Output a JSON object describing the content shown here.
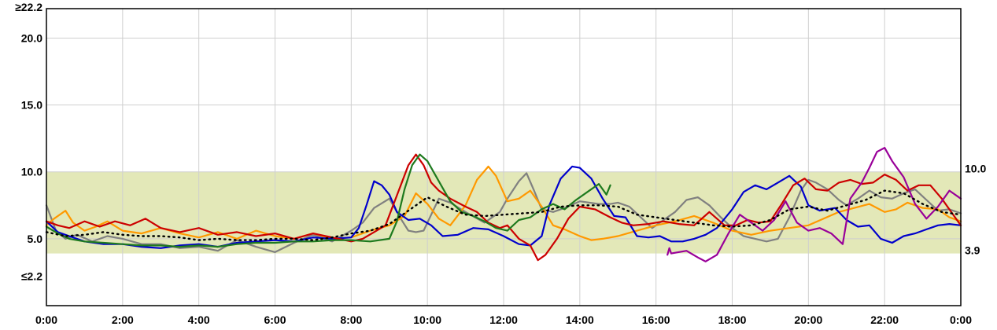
{
  "chart_data": {
    "type": "line",
    "x_unit": "hour",
    "xlim": [
      0,
      24
    ],
    "ylim": [
      0,
      22.2
    ],
    "x_ticks": [
      {
        "value": 0,
        "label": "0:00"
      },
      {
        "value": 2,
        "label": "2:00"
      },
      {
        "value": 4,
        "label": "4:00"
      },
      {
        "value": 6,
        "label": "6:00"
      },
      {
        "value": 8,
        "label": "8:00"
      },
      {
        "value": 10,
        "label": "10:00"
      },
      {
        "value": 12,
        "label": "12:00"
      },
      {
        "value": 14,
        "label": "14:00"
      },
      {
        "value": 16,
        "label": "16:00"
      },
      {
        "value": 18,
        "label": "18:00"
      },
      {
        "value": 20,
        "label": "20:00"
      },
      {
        "value": 22,
        "label": "22:00"
      },
      {
        "value": 24,
        "label": "0:00"
      }
    ],
    "y_ticks_left": [
      {
        "value": 22.2,
        "label": "≥22.2"
      },
      {
        "value": 20.0,
        "label": "20.0"
      },
      {
        "value": 15.0,
        "label": "15.0"
      },
      {
        "value": 10.0,
        "label": "10.0"
      },
      {
        "value": 5.0,
        "label": "5.0"
      },
      {
        "value": 2.2,
        "label": "≤2.2"
      }
    ],
    "y_labels_right": [
      {
        "value": 10.0,
        "label": "10.0"
      },
      {
        "value": 3.9,
        "label": "3.9"
      }
    ],
    "target_range": {
      "low": 3.9,
      "high": 10.0,
      "color": "#e3e8b8"
    },
    "grid": true,
    "series": [
      {
        "color": "#808080",
        "x": [
          0,
          0.25,
          0.5,
          0.8,
          1.2,
          1.6,
          2.0,
          2.5,
          3.0,
          3.5,
          4.0,
          4.5,
          5.0,
          5.5,
          6.0,
          6.5,
          7.0,
          7.5,
          8.0,
          8.3,
          8.6,
          9.0,
          9.3,
          9.5,
          9.7,
          9.9,
          10.1,
          10.3,
          10.6,
          11.0,
          11.5,
          11.9,
          12.1,
          12.4,
          12.6,
          12.8,
          13.0,
          13.3,
          13.6,
          14.0,
          14.5,
          14.8,
          15.0,
          15.3,
          15.6,
          15.9,
          16.2,
          16.5,
          16.8,
          17.1,
          17.4,
          17.7,
          18.0,
          18.3,
          18.6,
          18.9,
          19.2,
          19.5,
          19.8,
          20.0,
          20.2,
          20.5,
          20.8,
          21.0,
          21.3,
          21.6,
          21.9,
          22.2,
          22.5,
          22.8,
          23.1,
          23.4,
          23.7,
          24.0
        ],
        "y": [
          7.5,
          5.6,
          5.0,
          5.3,
          4.8,
          5.2,
          5.0,
          4.6,
          4.6,
          4.3,
          4.4,
          4.1,
          4.9,
          4.4,
          4.0,
          4.7,
          5.3,
          4.8,
          5.6,
          6.2,
          7.3,
          8.0,
          6.5,
          5.6,
          5.5,
          5.6,
          6.8,
          8.0,
          7.7,
          7.0,
          6.2,
          7.0,
          8.0,
          9.3,
          9.9,
          8.6,
          7.2,
          7.0,
          7.3,
          7.8,
          7.6,
          7.6,
          7.7,
          7.4,
          6.6,
          5.8,
          6.4,
          7.0,
          7.9,
          8.1,
          7.5,
          6.6,
          5.8,
          5.2,
          5.0,
          4.8,
          5.0,
          6.6,
          8.6,
          9.4,
          9.2,
          8.7,
          7.9,
          7.5,
          8.0,
          8.6,
          8.1,
          8.0,
          8.4,
          8.7,
          7.9,
          7.1,
          7.2,
          6.9
        ]
      },
      {
        "color": "#ff9900",
        "x": [
          0,
          0.2,
          0.5,
          0.7,
          1.0,
          1.3,
          1.6,
          2.0,
          2.5,
          3.0,
          3.5,
          4.0,
          4.5,
          5.0,
          5.5,
          6.0,
          6.5,
          7.0,
          7.5,
          8.0,
          8.5,
          9.0,
          9.4,
          9.7,
          10.0,
          10.3,
          10.6,
          11.0,
          11.3,
          11.6,
          11.8,
          12.1,
          12.4,
          12.7,
          13.0,
          13.3,
          13.6,
          14.0,
          14.3,
          14.6,
          15.0,
          15.5,
          16.0,
          16.5,
          17.0,
          17.5,
          18.0,
          18.5,
          19.0,
          19.5,
          20.0,
          20.4,
          20.8,
          21.2,
          21.6,
          22.0,
          22.3,
          22.6,
          23.0,
          23.4,
          23.7,
          24.0
        ],
        "y": [
          6.0,
          6.5,
          7.1,
          6.2,
          5.6,
          5.9,
          6.3,
          5.6,
          5.4,
          5.8,
          5.4,
          5.1,
          5.5,
          5.0,
          5.6,
          5.2,
          5.0,
          5.4,
          5.0,
          5.1,
          5.6,
          6.0,
          6.7,
          8.4,
          7.6,
          6.5,
          6.0,
          7.5,
          9.4,
          10.4,
          9.7,
          7.8,
          8.0,
          8.6,
          7.4,
          6.0,
          5.7,
          5.2,
          4.9,
          5.0,
          5.2,
          5.6,
          6.0,
          6.3,
          6.7,
          6.2,
          5.6,
          5.3,
          5.6,
          5.8,
          6.0,
          6.5,
          7.0,
          7.3,
          7.6,
          7.0,
          7.2,
          7.7,
          7.3,
          7.2,
          6.6,
          6.3
        ]
      },
      {
        "color": "#0000cc",
        "x": [
          0,
          0.3,
          0.6,
          1.0,
          1.5,
          2.0,
          2.5,
          3.0,
          3.5,
          4.0,
          4.5,
          5.0,
          5.5,
          6.0,
          6.5,
          7.0,
          7.5,
          8.0,
          8.2,
          8.4,
          8.6,
          8.8,
          9.0,
          9.2,
          9.5,
          9.8,
          10.1,
          10.4,
          10.8,
          11.2,
          11.6,
          12.0,
          12.4,
          12.7,
          13.0,
          13.2,
          13.5,
          13.8,
          14.0,
          14.3,
          14.6,
          14.9,
          15.2,
          15.5,
          15.8,
          16.1,
          16.4,
          16.7,
          17.0,
          17.3,
          17.6,
          17.8,
          18.0,
          18.3,
          18.6,
          18.9,
          19.2,
          19.5,
          19.8,
          20.0,
          20.3,
          20.7,
          21.0,
          21.3,
          21.6,
          21.9,
          22.2,
          22.5,
          22.8,
          23.1,
          23.4,
          23.7,
          24.0
        ],
        "y": [
          6.3,
          5.5,
          5.2,
          4.8,
          4.6,
          4.6,
          4.4,
          4.3,
          4.5,
          4.6,
          4.4,
          4.7,
          4.8,
          4.9,
          4.8,
          5.1,
          5.0,
          5.1,
          5.8,
          7.5,
          9.3,
          9.0,
          8.3,
          7.0,
          6.4,
          6.5,
          6.0,
          5.2,
          5.3,
          5.8,
          5.7,
          5.2,
          4.6,
          4.5,
          5.2,
          7.5,
          9.5,
          10.4,
          10.3,
          9.5,
          8.0,
          6.7,
          6.6,
          5.2,
          5.1,
          5.2,
          4.8,
          4.8,
          5.0,
          5.3,
          5.8,
          6.5,
          7.2,
          8.5,
          9.0,
          8.7,
          9.2,
          9.7,
          8.9,
          7.5,
          7.1,
          7.3,
          6.4,
          5.9,
          6.0,
          5.0,
          4.7,
          5.2,
          5.4,
          5.7,
          6.0,
          6.1,
          6.0
        ]
      },
      {
        "color": "#cc0000",
        "x": [
          0,
          0.3,
          0.6,
          1.0,
          1.4,
          1.8,
          2.2,
          2.6,
          3.0,
          3.5,
          4.0,
          4.5,
          5.0,
          5.5,
          6.0,
          6.5,
          7.0,
          7.5,
          8.0,
          8.3,
          8.6,
          8.9,
          9.1,
          9.3,
          9.5,
          9.7,
          9.9,
          10.1,
          10.3,
          10.6,
          11.0,
          11.3,
          11.6,
          11.9,
          12.1,
          12.4,
          12.7,
          12.9,
          13.1,
          13.4,
          13.7,
          14.0,
          14.4,
          14.8,
          15.1,
          15.4,
          15.8,
          16.2,
          16.6,
          17.0,
          17.4,
          17.8,
          18.1,
          18.4,
          18.7,
          19.0,
          19.3,
          19.6,
          19.9,
          20.2,
          20.5,
          20.8,
          21.1,
          21.4,
          21.7,
          22.0,
          22.3,
          22.6,
          22.9,
          23.2,
          23.5,
          23.8,
          24.0
        ],
        "y": [
          6.3,
          6.0,
          5.8,
          6.3,
          5.9,
          6.3,
          6.0,
          6.5,
          5.8,
          5.5,
          5.8,
          5.3,
          5.5,
          5.2,
          5.4,
          5.0,
          5.4,
          5.1,
          4.8,
          5.0,
          5.5,
          6.0,
          7.5,
          9.0,
          10.5,
          11.3,
          10.5,
          9.2,
          8.6,
          8.0,
          7.4,
          7.0,
          6.2,
          5.8,
          6.0,
          5.0,
          4.5,
          3.4,
          3.8,
          5.0,
          6.5,
          7.4,
          7.2,
          6.6,
          6.2,
          6.0,
          6.1,
          6.3,
          6.1,
          6.0,
          7.0,
          6.0,
          6.0,
          6.4,
          6.2,
          6.3,
          7.6,
          9.0,
          9.5,
          8.7,
          8.6,
          9.2,
          9.4,
          9.1,
          9.2,
          9.8,
          9.4,
          8.6,
          9.0,
          9.0,
          8.0,
          6.8,
          6.0
        ]
      },
      {
        "color": "#1e7a1e",
        "x": [
          0,
          0.3,
          0.6,
          1.0,
          1.5,
          2.0,
          2.5,
          3.0,
          3.5,
          4.0,
          4.5,
          5.0,
          5.5,
          6.0,
          6.5,
          7.0,
          7.5,
          8.0,
          8.5,
          9.0,
          9.2,
          9.4,
          9.6,
          9.8,
          10.0,
          10.2,
          10.4,
          10.6,
          10.9,
          11.2,
          11.5,
          11.8,
          12.1,
          12.4,
          12.7,
          13.0,
          13.3,
          13.6,
          13.9,
          14.2,
          14.5,
          14.7,
          14.8
        ],
        "y": [
          5.9,
          5.4,
          5.0,
          4.8,
          4.7,
          4.6,
          4.5,
          4.5,
          4.4,
          4.5,
          4.4,
          4.6,
          4.7,
          4.7,
          4.8,
          4.8,
          4.9,
          4.9,
          4.8,
          5.0,
          6.3,
          8.7,
          10.5,
          11.3,
          10.8,
          9.8,
          8.8,
          7.8,
          7.0,
          6.7,
          6.3,
          5.8,
          5.6,
          6.4,
          6.6,
          7.2,
          7.6,
          7.2,
          7.9,
          8.5,
          9.1,
          8.3,
          9.0
        ]
      },
      {
        "color": "#990099",
        "x": [
          16.3,
          16.35,
          16.4,
          16.8,
          17.1,
          17.3,
          17.6,
          17.9,
          18.2,
          18.5,
          18.8,
          19.1,
          19.4,
          19.7,
          20.0,
          20.3,
          20.6,
          20.9,
          21.1,
          21.4,
          21.6,
          21.8,
          22.0,
          22.2,
          22.5,
          22.8,
          23.1,
          23.4,
          23.7,
          24.0
        ],
        "y": [
          3.8,
          4.3,
          3.9,
          4.1,
          3.6,
          3.3,
          3.8,
          5.4,
          6.8,
          6.2,
          5.6,
          6.4,
          7.8,
          6.2,
          5.6,
          5.8,
          5.4,
          4.6,
          8.0,
          9.2,
          10.3,
          11.5,
          11.8,
          10.8,
          9.6,
          7.6,
          6.5,
          7.4,
          8.6,
          8.0
        ]
      }
    ],
    "median": {
      "x": [
        0,
        0.5,
        1,
        1.5,
        2,
        2.5,
        3,
        3.5,
        4,
        4.5,
        5,
        5.5,
        6,
        6.5,
        7,
        7.5,
        8,
        8.5,
        9,
        9.5,
        10,
        10.5,
        11,
        11.5,
        12,
        12.5,
        13,
        13.5,
        14,
        14.5,
        15,
        15.5,
        16,
        16.5,
        17,
        17.5,
        18,
        18.5,
        19,
        19.5,
        20,
        20.5,
        21,
        21.5,
        22,
        22.5,
        23,
        23.5,
        24
      ],
      "y": [
        5.5,
        5.2,
        5.3,
        5.5,
        5.3,
        5.2,
        5.2,
        5.1,
        4.9,
        5.0,
        4.9,
        4.9,
        5.0,
        5.0,
        4.9,
        5.1,
        5.4,
        5.6,
        6.1,
        7.1,
        8.1,
        7.4,
        6.8,
        6.7,
        6.8,
        6.9,
        7.0,
        7.4,
        7.5,
        7.5,
        7.4,
        6.8,
        6.6,
        6.4,
        6.2,
        6.0,
        5.9,
        6.0,
        6.4,
        7.2,
        7.4,
        7.1,
        7.5,
        7.9,
        8.6,
        8.4,
        7.6,
        7.0,
        6.8
      ]
    }
  }
}
